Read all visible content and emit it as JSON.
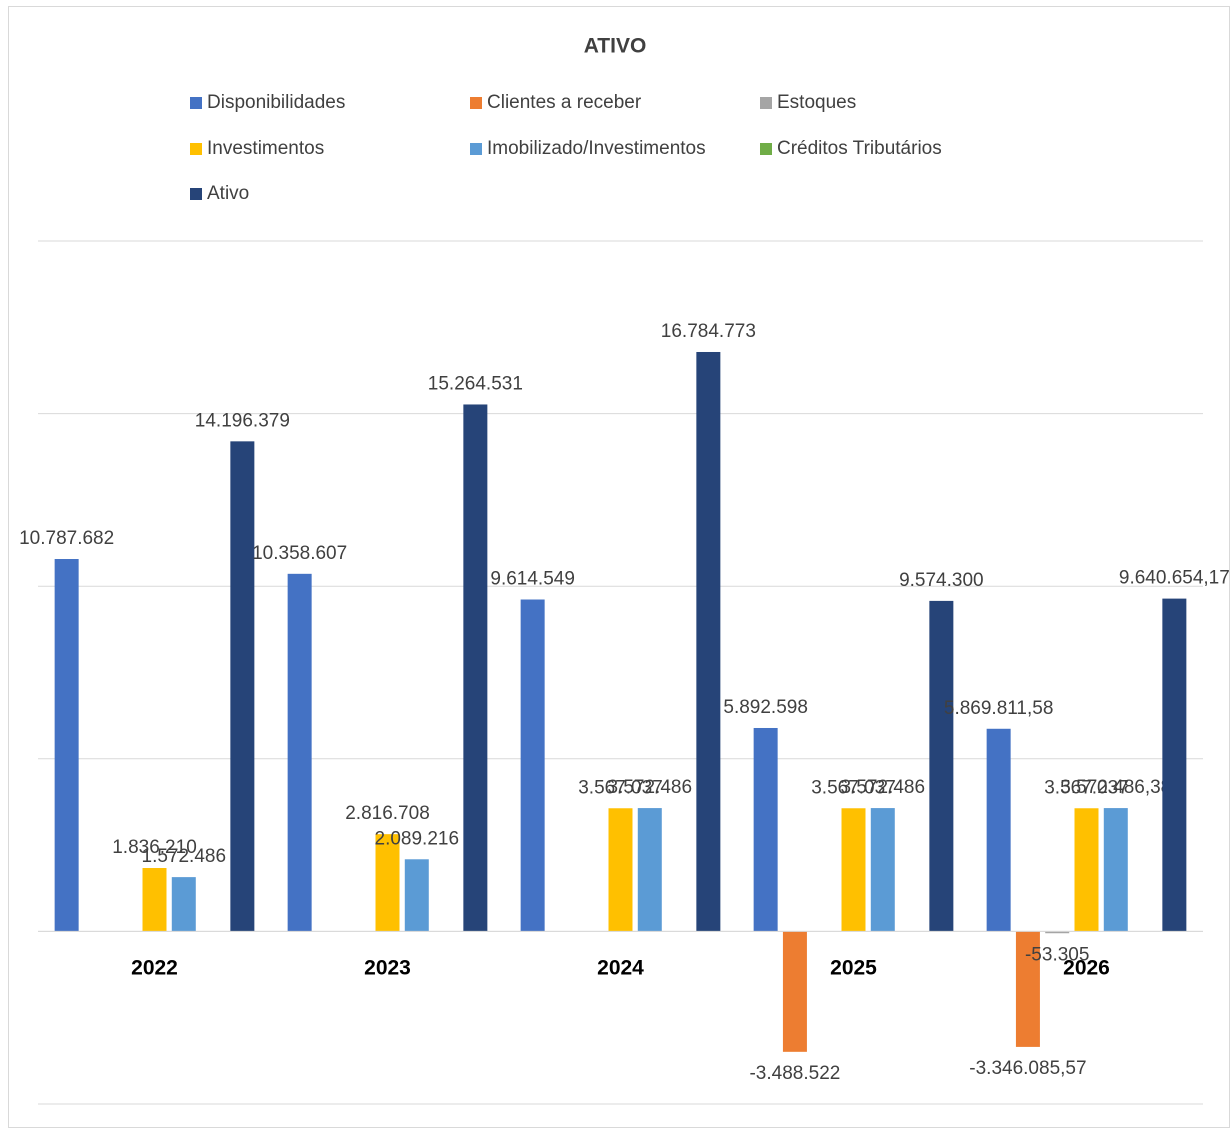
{
  "chart_data": {
    "type": "bar",
    "title": "ATIVO",
    "categories": [
      "2022",
      "2023",
      "2024",
      "2025",
      "2026"
    ],
    "series": [
      {
        "name": "Disponibilidades",
        "color": "#4472c4",
        "values": [
          10787682,
          10358607,
          9614549,
          5892598,
          5869811.58
        ],
        "value_labels": [
          "10.787.682",
          "10.358.607",
          "9.614.549",
          "5.892.598",
          "5.869.811,58"
        ]
      },
      {
        "name": "Clientes a receber",
        "color": "#ed7d31",
        "values": [
          null,
          null,
          null,
          -3488522,
          -3346085.57
        ],
        "value_labels": [
          null,
          null,
          null,
          "-3.488.522",
          "-3.346.085,57"
        ]
      },
      {
        "name": "Estoques",
        "color": "#a5a5a5",
        "values": [
          null,
          null,
          null,
          null,
          -53305
        ],
        "value_labels": [
          null,
          null,
          null,
          null,
          "-53.305"
        ]
      },
      {
        "name": "Investimentos",
        "color": "#ffc000",
        "values": [
          1836210,
          2816708,
          3567037,
          3567037,
          3567037
        ],
        "value_labels": [
          "1.836.210",
          "2.816.708",
          "3.567.037",
          "3.567.037",
          "3.567.037"
        ]
      },
      {
        "name": "Imobilizado/Investimentos",
        "color": "#5b9bd5",
        "values": [
          1572486,
          2089216,
          3572486,
          3572486,
          3572486.38
        ],
        "value_labels": [
          "1.572.486",
          "2.089.216",
          "3.572.486",
          "3.572.486",
          "3.572.486,38"
        ]
      },
      {
        "name": "Créditos Tributários",
        "color": "#70ad47",
        "values": [
          null,
          null,
          null,
          null,
          null
        ]
      },
      {
        "name": "Ativo",
        "color": "#264478",
        "values": [
          14196379,
          15264531,
          16784773,
          9574300,
          9640654.17
        ],
        "value_labels": [
          "14.196.379",
          "15.264.531",
          "16.784.773",
          "9.574.300",
          "9.640.654,17"
        ]
      }
    ],
    "ylim": [
      -5000000,
      20000000
    ],
    "yticks": [
      -5000000,
      0,
      5000000,
      10000000,
      15000000,
      20000000
    ],
    "grid": true,
    "legend": "top"
  }
}
